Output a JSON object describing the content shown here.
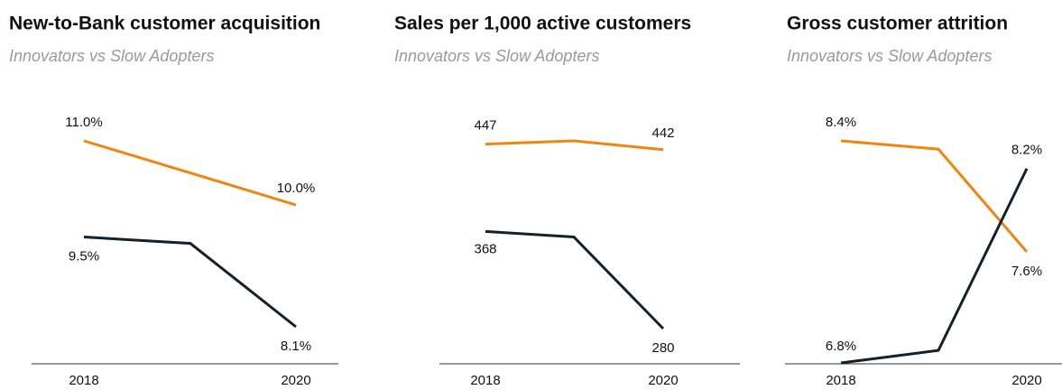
{
  "chart_data": [
    {
      "type": "line",
      "title": "New-to-Bank customer acquisition",
      "subtitle": "Innovators vs Slow Adopters",
      "categories": [
        "2018",
        null,
        "2020"
      ],
      "series": [
        {
          "color": "#f0860f",
          "values": [
            11.0,
            10.5,
            10.0
          ],
          "value_labels": [
            "11.0%",
            null,
            "10.0%"
          ]
        },
        {
          "color": "#14212b",
          "values": [
            9.5,
            9.4,
            8.1
          ],
          "value_labels": [
            "9.5%",
            null,
            "8.1%"
          ]
        }
      ]
    },
    {
      "type": "line",
      "title": "Sales per 1,000 active customers",
      "subtitle": "Innovators vs Slow Adopters",
      "categories": [
        "2018",
        null,
        "2020"
      ],
      "series": [
        {
          "color": "#f0860f",
          "values": [
            447,
            450,
            442
          ]
        },
        {
          "color": "#14212b",
          "values": [
            368,
            363,
            280
          ]
        }
      ]
    },
    {
      "type": "line",
      "title": "Gross customer attrition",
      "subtitle": "Innovators vs Slow Adopters",
      "categories": [
        "2018",
        null,
        "2020"
      ],
      "series": [
        {
          "color": "#f0860f",
          "values": [
            8.4,
            8.34,
            7.6
          ],
          "value_labels": [
            "8.4%",
            null,
            "7.6%"
          ]
        },
        {
          "color": "#14212b",
          "values": [
            6.8,
            6.89,
            8.2
          ],
          "value_labels": [
            "6.8%",
            null,
            "8.2%"
          ]
        }
      ]
    }
  ]
}
